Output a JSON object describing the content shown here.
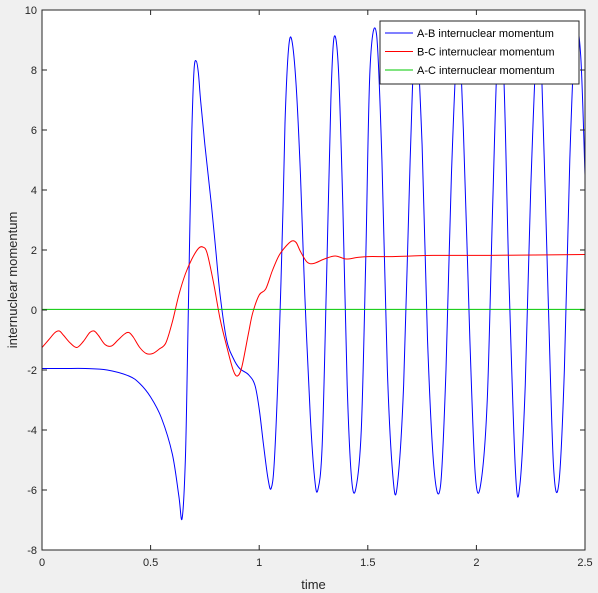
{
  "chart_data": {
    "type": "line",
    "title": "",
    "xlabel": "time",
    "ylabel": "internuclear momentum",
    "xlim": [
      0,
      2.5
    ],
    "ylim": [
      -8,
      10
    ],
    "xticks": [
      0,
      0.5,
      1,
      1.5,
      2,
      2.5
    ],
    "xtick_labels": [
      "0",
      "0.5",
      "1",
      "1.5",
      "2",
      "2.5"
    ],
    "yticks": [
      -8,
      -6,
      -4,
      -2,
      0,
      2,
      4,
      6,
      8,
      10
    ],
    "ytick_labels": [
      "-8",
      "-6",
      "-4",
      "-2",
      "0",
      "2",
      "4",
      "6",
      "8",
      "10"
    ],
    "grid": false,
    "legend_position": "top-right",
    "series": [
      {
        "name": "A-B internuclear momentum",
        "color": "#0000ff",
        "x": [
          0,
          0.1,
          0.2,
          0.3,
          0.4,
          0.45,
          0.5,
          0.55,
          0.6,
          0.63,
          0.645,
          0.66,
          0.67,
          0.68,
          0.69,
          0.7,
          0.71,
          0.72,
          0.73,
          0.75,
          0.78,
          0.8,
          0.82,
          0.85,
          0.88,
          0.91,
          0.95,
          0.98,
          1.0,
          1.02,
          1.04,
          1.055,
          1.07,
          1.09,
          1.11,
          1.12,
          1.135,
          1.15,
          1.17,
          1.19,
          1.21,
          1.235,
          1.255,
          1.27,
          1.29,
          1.31,
          1.33,
          1.345,
          1.365,
          1.385,
          1.405,
          1.425,
          1.445,
          1.47,
          1.49,
          1.51,
          1.54,
          1.565,
          1.59,
          1.615,
          1.635,
          1.665,
          1.695,
          1.72,
          1.75,
          1.775,
          1.805,
          1.835,
          1.86,
          1.885,
          1.915,
          1.94,
          1.97,
          1.995,
          2.02,
          2.05,
          2.075,
          2.1,
          2.125,
          2.15,
          2.18,
          2.2,
          2.225,
          2.25,
          2.28,
          2.3,
          2.33,
          2.355,
          2.38,
          2.405,
          2.43,
          2.455,
          2.48,
          2.5
        ],
        "y": [
          -1.95,
          -1.95,
          -1.95,
          -2.0,
          -2.2,
          -2.45,
          -2.9,
          -3.6,
          -4.8,
          -6.2,
          -6.95,
          -5.0,
          -1.5,
          2.5,
          6.0,
          8.0,
          8.3,
          7.9,
          7.0,
          5.5,
          3.5,
          2.0,
          0.5,
          -1.0,
          -1.6,
          -1.95,
          -2.15,
          -2.5,
          -3.3,
          -4.5,
          -5.6,
          -5.95,
          -5.0,
          -1.5,
          3.5,
          6.5,
          8.7,
          9.0,
          7.5,
          4.5,
          0.5,
          -3.5,
          -5.6,
          -6.0,
          -4.5,
          1.0,
          7.0,
          9.1,
          8.0,
          3.5,
          -2.5,
          -5.6,
          -5.95,
          -4.0,
          1.5,
          8.0,
          9.2,
          5.0,
          -2.0,
          -5.5,
          -5.9,
          -2.5,
          5.0,
          9.2,
          5.5,
          -1.0,
          -5.3,
          -5.85,
          -2.0,
          4.5,
          9.1,
          6.0,
          -1.0,
          -5.5,
          -5.8,
          -3.0,
          3.5,
          9.0,
          8.0,
          1.0,
          -5.4,
          -5.85,
          -2.5,
          4.0,
          9.2,
          8.0,
          0.5,
          -5.2,
          -5.75,
          -2.0,
          5.0,
          9.2,
          8.5,
          4.5
        ]
      },
      {
        "name": "B-C internuclear momentum",
        "color": "#ff0000",
        "x": [
          0,
          0.03,
          0.06,
          0.08,
          0.1,
          0.13,
          0.16,
          0.19,
          0.22,
          0.24,
          0.26,
          0.29,
          0.32,
          0.35,
          0.38,
          0.4,
          0.42,
          0.45,
          0.48,
          0.51,
          0.54,
          0.57,
          0.6,
          0.63,
          0.66,
          0.69,
          0.72,
          0.74,
          0.76,
          0.79,
          0.82,
          0.85,
          0.88,
          0.9,
          0.92,
          0.95,
          0.97,
          1.0,
          1.03,
          1.06,
          1.09,
          1.12,
          1.15,
          1.17,
          1.19,
          1.22,
          1.25,
          1.3,
          1.35,
          1.4,
          1.45,
          1.5,
          1.6,
          1.7,
          1.8,
          2.0,
          2.2,
          2.5
        ],
        "y": [
          -1.25,
          -1.0,
          -0.75,
          -0.7,
          -0.85,
          -1.1,
          -1.25,
          -1.05,
          -0.75,
          -0.7,
          -0.85,
          -1.15,
          -1.2,
          -1.0,
          -0.8,
          -0.75,
          -0.9,
          -1.25,
          -1.45,
          -1.45,
          -1.3,
          -1.1,
          -0.4,
          0.5,
          1.2,
          1.7,
          2.05,
          2.1,
          1.9,
          0.9,
          -0.3,
          -1.2,
          -2.0,
          -2.2,
          -1.9,
          -0.8,
          -0.1,
          0.5,
          0.7,
          1.3,
          1.8,
          2.1,
          2.3,
          2.25,
          1.95,
          1.6,
          1.55,
          1.7,
          1.8,
          1.7,
          1.75,
          1.78,
          1.78,
          1.8,
          1.82,
          1.82,
          1.83,
          1.85
        ]
      },
      {
        "name": "A-C internuclear momentum",
        "color": "#00c800",
        "x": [
          0,
          2.5
        ],
        "y": [
          0.02,
          0.02
        ]
      }
    ]
  }
}
